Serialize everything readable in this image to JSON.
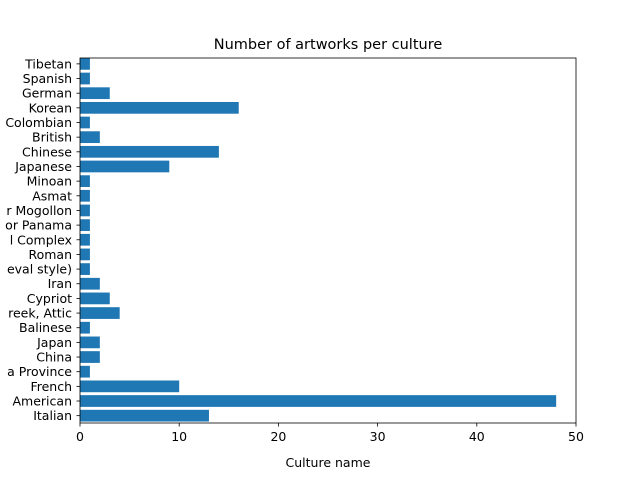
{
  "chart_data": {
    "type": "bar",
    "orientation": "horizontal",
    "title": "Number of artworks per culture",
    "xlabel": "Culture name",
    "ylabel": "",
    "xlim": [
      0,
      50
    ],
    "xticks": [
      "0",
      "10",
      "20",
      "30",
      "40",
      "50"
    ],
    "grid": false,
    "bar_color": "#1f77b4",
    "categories": [
      "Italian",
      "American",
      "French",
      "a Province",
      "China",
      "Japan",
      "Balinese",
      "reek, Attic",
      "Cypriot",
      "Iran",
      "eval style)",
      "Roman",
      "l Complex",
      "or Panama",
      "r Mogollon",
      "Asmat",
      "Minoan",
      "Japanese",
      "Chinese",
      "British",
      "Colombian",
      "Korean",
      "German",
      "Spanish",
      "Tibetan"
    ],
    "values": [
      13,
      48,
      10,
      1,
      2,
      2,
      1,
      4,
      3,
      2,
      1,
      1,
      1,
      1,
      1,
      1,
      1,
      9,
      14,
      2,
      1,
      16,
      3,
      1,
      1
    ]
  }
}
